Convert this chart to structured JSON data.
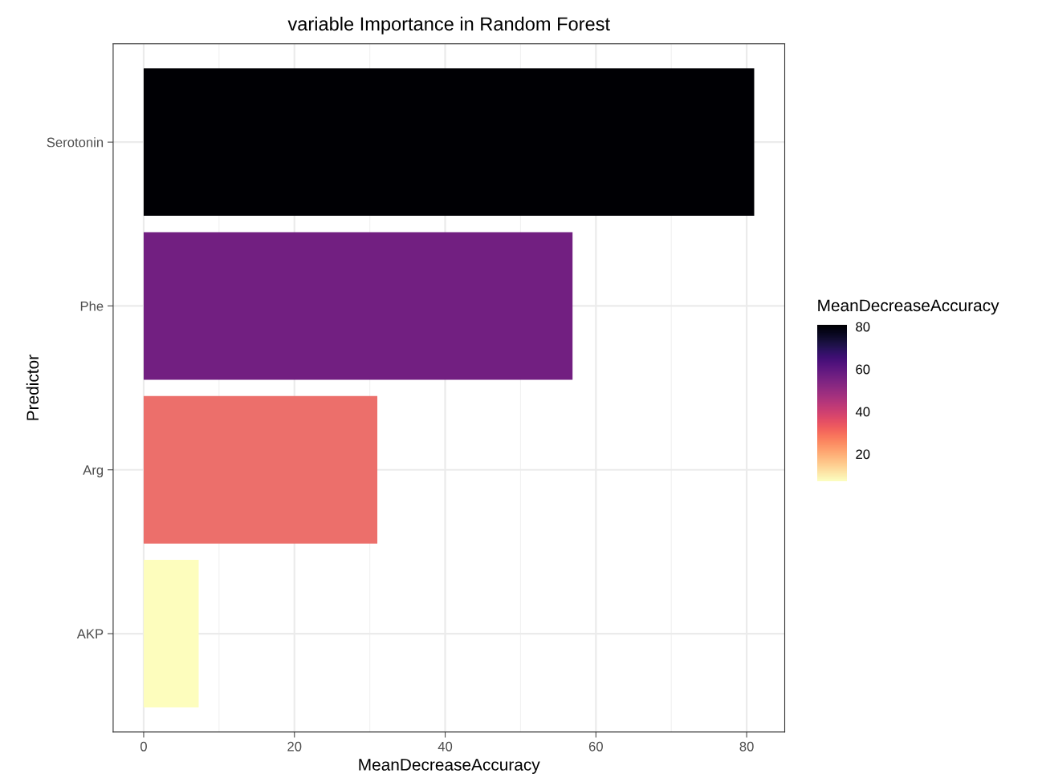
{
  "chart_data": {
    "type": "bar",
    "orientation": "horizontal",
    "title": "variable Importance in Random Forest",
    "xlabel": "MeanDecreaseAccuracy",
    "ylabel": "Predictor",
    "categories": [
      "Serotonin",
      "Phe",
      "Arg",
      "AKP"
    ],
    "values": [
      81,
      56.9,
      31,
      7.3
    ],
    "colors": [
      "#000004",
      "#721f81",
      "#ec6f6b",
      "#fdfdbd"
    ],
    "xlim": [
      -4.05,
      85.05
    ],
    "xticks": [
      0,
      20,
      40,
      60,
      80
    ],
    "grid": true,
    "clabel": "MeanDecreaseAccuracy",
    "clim": [
      7.3,
      81
    ],
    "cticks": [
      20,
      40,
      60,
      80
    ]
  }
}
